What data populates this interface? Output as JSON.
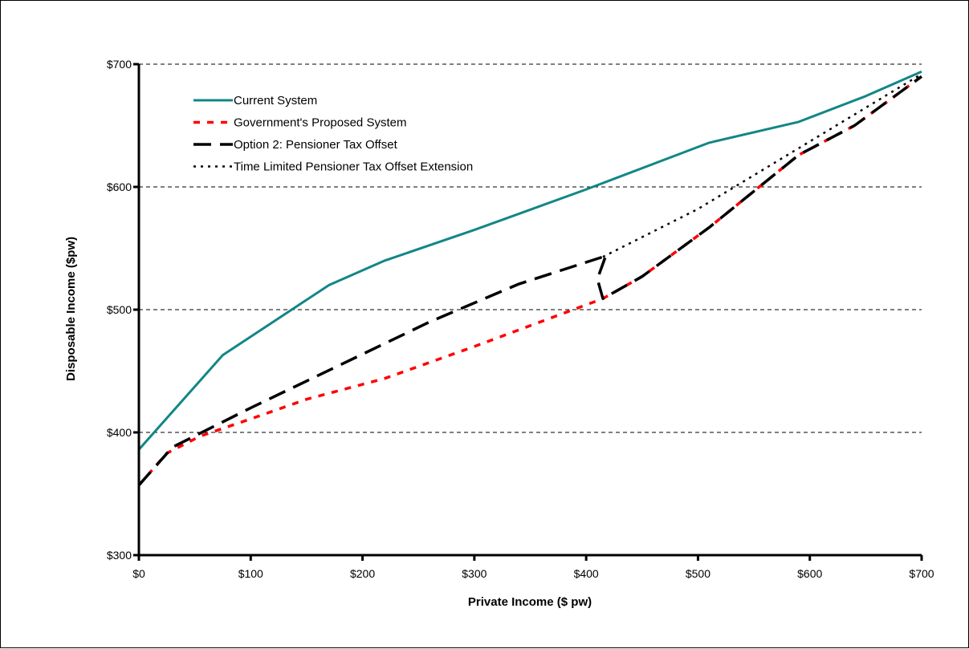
{
  "chart_data": {
    "type": "line",
    "title": "",
    "xlabel": "Private Income ($ pw)",
    "ylabel": "Disposable Income ($pw)",
    "xlim": [
      0,
      700
    ],
    "ylim": [
      300,
      700
    ],
    "x_ticks": [
      0,
      100,
      200,
      300,
      400,
      500,
      600,
      700
    ],
    "x_tick_labels": [
      "$0",
      "$100",
      "$200",
      "$300",
      "$400",
      "$500",
      "$600",
      "$700"
    ],
    "y_ticks": [
      300,
      400,
      500,
      600,
      700
    ],
    "y_tick_labels": [
      "$300",
      "$400",
      "$500",
      "$600",
      "$700"
    ],
    "grid": "horizontal dashed",
    "legend_placement": "top-left",
    "series": [
      {
        "name": "Current System",
        "color": "#138686",
        "style": "solid",
        "points": [
          [
            0,
            386
          ],
          [
            75,
            463
          ],
          [
            170,
            520
          ],
          [
            220,
            540
          ],
          [
            300,
            565
          ],
          [
            400,
            598
          ],
          [
            510,
            636
          ],
          [
            590,
            653
          ],
          [
            650,
            674
          ],
          [
            700,
            694
          ]
        ]
      },
      {
        "name": "Government's Proposed System",
        "color": "#ff0000",
        "style": "dash",
        "points": [
          [
            0,
            357
          ],
          [
            25,
            383
          ],
          [
            55,
            397
          ],
          [
            100,
            411
          ],
          [
            150,
            427
          ],
          [
            220,
            444
          ],
          [
            300,
            470
          ],
          [
            415,
            509
          ],
          [
            450,
            527
          ],
          [
            510,
            567
          ],
          [
            590,
            626
          ],
          [
            640,
            650
          ],
          [
            700,
            690
          ]
        ]
      },
      {
        "name": "Option 2: Pensioner Tax Offset",
        "color": "#000000",
        "style": "longdash",
        "points": [
          [
            0,
            357
          ],
          [
            30,
            388
          ],
          [
            100,
            420
          ],
          [
            180,
            455
          ],
          [
            260,
            490
          ],
          [
            340,
            521
          ],
          [
            415,
            543
          ],
          [
            418,
            545
          ],
          [
            410,
            525
          ],
          [
            415,
            509
          ],
          [
            450,
            527
          ],
          [
            510,
            567
          ],
          [
            590,
            626
          ],
          [
            640,
            650
          ],
          [
            700,
            690
          ]
        ]
      },
      {
        "name": "Time Limited Pensioner Tax Offset Extension",
        "color": "#000000",
        "style": "dot",
        "points": [
          [
            415,
            543
          ],
          [
            500,
            582
          ],
          [
            600,
            637
          ],
          [
            700,
            692
          ]
        ]
      }
    ]
  }
}
